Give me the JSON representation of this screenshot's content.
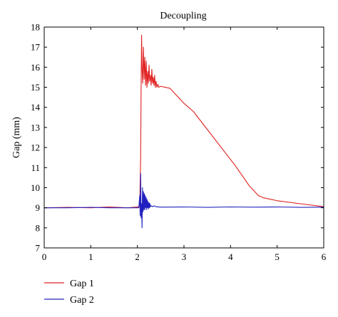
{
  "chart_data": {
    "type": "line",
    "title": "Decoupling",
    "xlabel": "",
    "ylabel": "Gap (mm)",
    "xlim": [
      0,
      6
    ],
    "ylim": [
      7,
      18
    ],
    "x_ticks": [
      0,
      1,
      2,
      3,
      4,
      5,
      6
    ],
    "y_ticks": [
      7,
      8,
      9,
      10,
      11,
      12,
      13,
      14,
      15,
      16,
      17,
      18
    ],
    "grid": false,
    "legend_position": "bottom-left",
    "series": [
      {
        "name": "Gap 1",
        "color": "#e02020",
        "x": [
          0,
          0.5,
          1.0,
          1.4,
          1.8,
          2.05,
          2.07,
          2.08,
          2.09,
          2.1,
          2.115,
          2.13,
          2.145,
          2.16,
          2.175,
          2.19,
          2.205,
          2.22,
          2.235,
          2.25,
          2.265,
          2.28,
          2.295,
          2.31,
          2.325,
          2.34,
          2.355,
          2.37,
          2.385,
          2.4,
          2.42,
          2.44,
          2.46,
          2.5,
          2.6,
          2.7,
          2.8,
          3.0,
          3.2,
          3.5,
          3.8,
          4.1,
          4.4,
          4.6,
          4.7,
          5.0,
          5.5,
          6.0
        ],
        "values": [
          9.0,
          9.02,
          9.0,
          9.04,
          9.0,
          9.05,
          11.5,
          15.0,
          17.6,
          16.0,
          15.2,
          17.0,
          15.4,
          16.5,
          15.1,
          16.3,
          15.0,
          15.8,
          15.2,
          16.1,
          15.3,
          15.6,
          15.1,
          15.9,
          15.2,
          15.5,
          15.1,
          15.6,
          15.0,
          15.3,
          15.0,
          15.15,
          15.0,
          15.05,
          15.0,
          14.95,
          14.7,
          14.2,
          13.8,
          12.9,
          12.0,
          11.1,
          10.1,
          9.6,
          9.5,
          9.35,
          9.2,
          9.05
        ]
      },
      {
        "name": "Gap 2",
        "color": "#2020c0",
        "x": [
          0,
          0.5,
          1.0,
          1.4,
          1.8,
          2.03,
          2.05,
          2.06,
          2.07,
          2.08,
          2.09,
          2.1,
          2.11,
          2.12,
          2.13,
          2.14,
          2.15,
          2.16,
          2.17,
          2.18,
          2.19,
          2.2,
          2.21,
          2.22,
          2.23,
          2.24,
          2.25,
          2.26,
          2.27,
          2.28,
          2.3,
          2.33,
          2.36,
          2.4,
          2.5,
          3.0,
          3.5,
          4.0,
          4.5,
          5.0,
          5.5,
          6.0
        ],
        "values": [
          9.0,
          9.0,
          9.02,
          9.0,
          9.0,
          9.0,
          9.6,
          8.6,
          10.7,
          8.5,
          9.2,
          8.0,
          10.0,
          8.8,
          9.8,
          8.9,
          9.7,
          8.9,
          9.6,
          9.0,
          9.5,
          8.9,
          9.4,
          9.0,
          9.3,
          8.95,
          9.25,
          9.0,
          9.2,
          9.05,
          9.1,
          9.05,
          9.1,
          9.05,
          9.03,
          9.04,
          9.02,
          9.04,
          9.03,
          9.04,
          9.02,
          9.03
        ]
      }
    ]
  }
}
